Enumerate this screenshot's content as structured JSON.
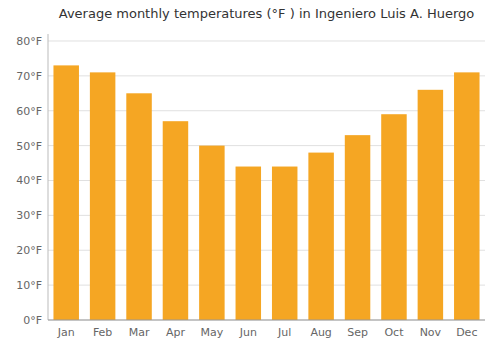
{
  "chart_data": {
    "type": "bar",
    "title": "Average monthly temperatures (°F ) in Ingeniero Luis A. Huergo",
    "categories": [
      "Jan",
      "Feb",
      "Mar",
      "Apr",
      "May",
      "Jun",
      "Jul",
      "Aug",
      "Sep",
      "Oct",
      "Nov",
      "Dec"
    ],
    "values": [
      73,
      71,
      65,
      57,
      50,
      44,
      44,
      48,
      53,
      59,
      66,
      71
    ],
    "color": "#F5A623",
    "ylim": [
      0,
      82
    ],
    "yticks": [
      {
        "value": 0,
        "label": "0°F"
      },
      {
        "value": 10,
        "label": "10°F"
      },
      {
        "value": 20,
        "label": "20°F"
      },
      {
        "value": 30,
        "label": "30°F"
      },
      {
        "value": 40,
        "label": "40°F"
      },
      {
        "value": 50,
        "label": "50°F"
      },
      {
        "value": 60,
        "label": "60°F"
      },
      {
        "value": 70,
        "label": "70°F"
      },
      {
        "value": 80,
        "label": "80°F"
      }
    ],
    "grid": true
  }
}
